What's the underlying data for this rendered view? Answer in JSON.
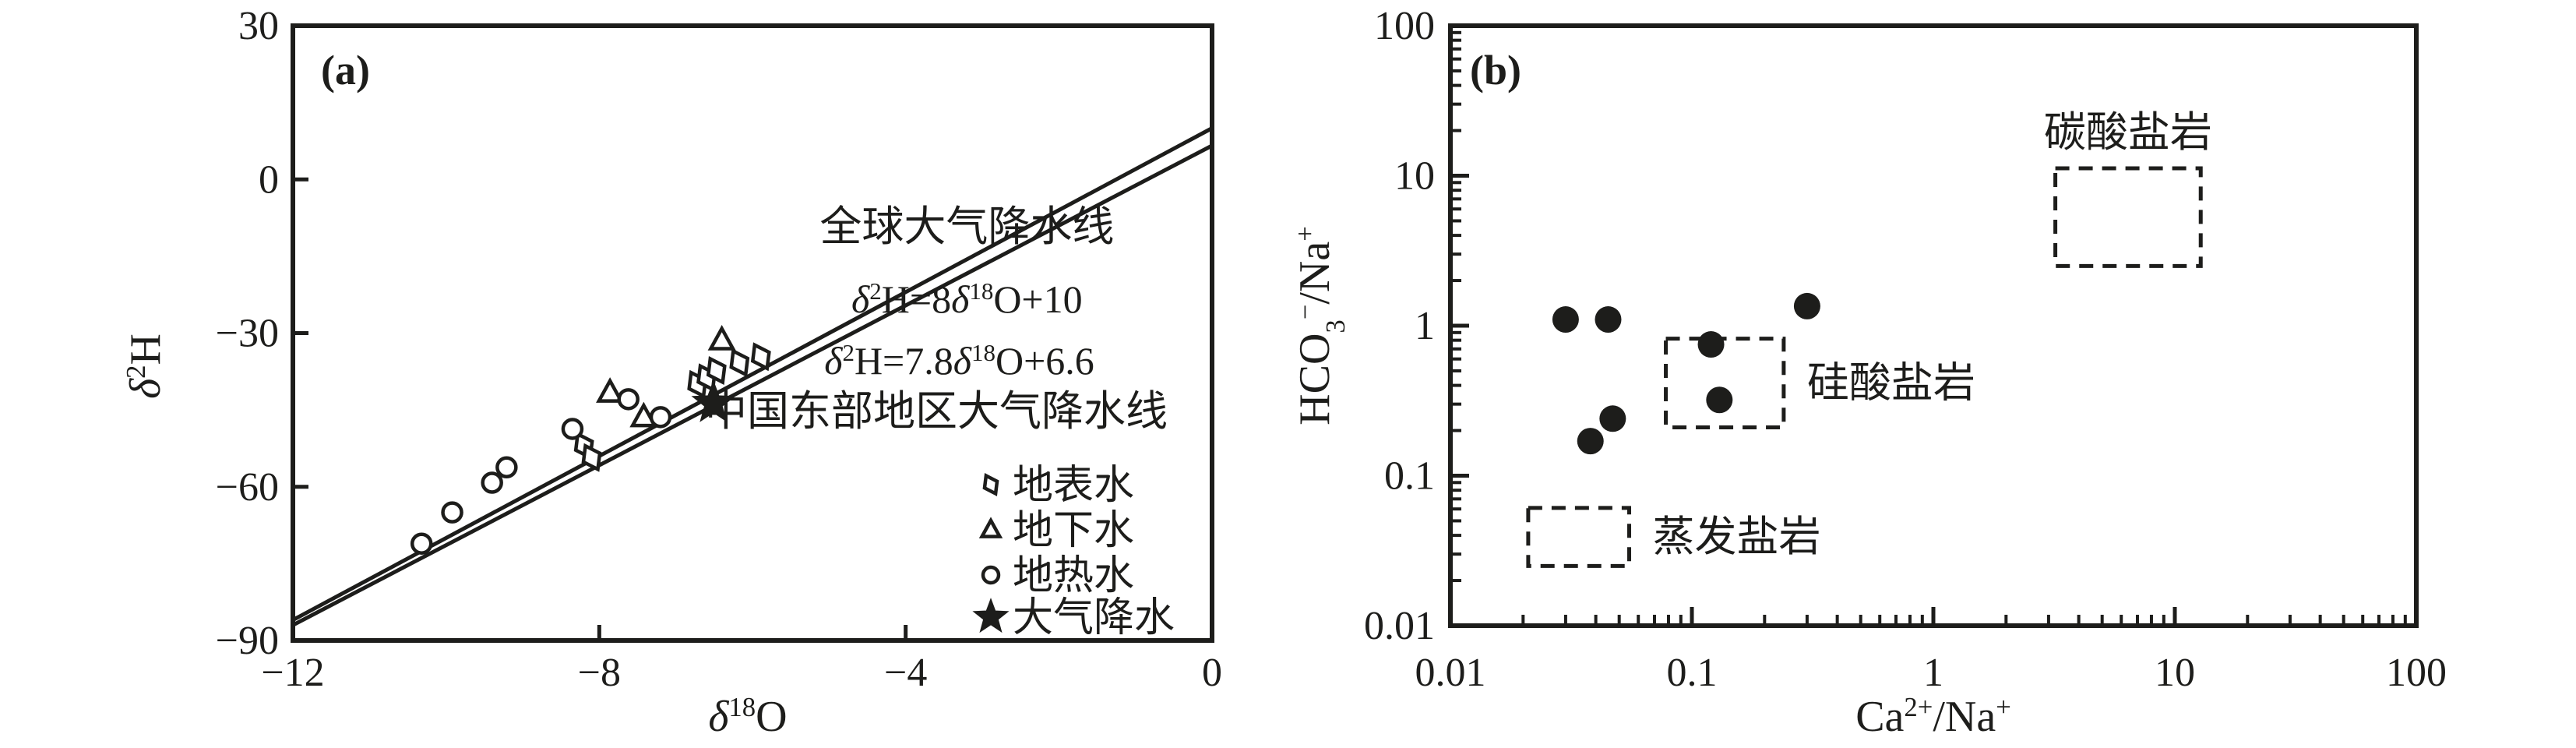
{
  "figure": {
    "ink_color": "#1d1d1b",
    "bg_color": "#ffffff"
  },
  "chart_data": [
    {
      "type": "scatter",
      "panel_label": "(a)",
      "xlabel_rich": [
        {
          "t": "δ",
          "i": true
        },
        {
          "t": "18",
          "sup": true
        },
        {
          "t": "O"
        }
      ],
      "ylabel_rich": [
        {
          "t": "δ",
          "i": true
        },
        {
          "t": "2",
          "sup": true
        },
        {
          "t": "H"
        }
      ],
      "xlim": [
        -12,
        0
      ],
      "ylim": [
        -90,
        30
      ],
      "x_ticks": [
        -12,
        -8,
        -4,
        0
      ],
      "y_ticks": [
        30,
        0,
        -30,
        -60,
        -90
      ],
      "x_tick_labels": [
        "−12",
        "−8",
        "−4",
        "0"
      ],
      "y_tick_labels": [
        "30",
        "0",
        "−30",
        "−60",
        "−90"
      ],
      "grid": false,
      "reference_lines": [
        {
          "name": "global-meteoric-water-line",
          "slope": 8,
          "intercept": 10,
          "title": "全球大气降水线",
          "equation_rich": [
            {
              "t": "δ",
              "i": true
            },
            {
              "t": "2",
              "sup": true
            },
            {
              "t": "H=8"
            },
            {
              "t": "δ",
              "i": true
            },
            {
              "t": "18",
              "sup": true
            },
            {
              "t": "O+10"
            }
          ],
          "title_anchor": {
            "x": -3.2,
            "y": -12.0
          },
          "equation_anchor": {
            "x": -3.2,
            "y": -26.0
          }
        },
        {
          "name": "east-china-meteoric-water-line",
          "slope": 7.8,
          "intercept": 6.6,
          "title": "中国东部地区大气降水线",
          "equation_rich": [
            {
              "t": "δ",
              "i": true
            },
            {
              "t": "2",
              "sup": true
            },
            {
              "t": "H=7.8"
            },
            {
              "t": "δ",
              "i": true
            },
            {
              "t": "18",
              "sup": true
            },
            {
              "t": "O+6.6"
            }
          ],
          "title_anchor": {
            "x": -3.6,
            "y": -48.0
          },
          "equation_anchor": {
            "x": -3.3,
            "y": -38.0
          }
        }
      ],
      "series": [
        {
          "name": "地表水",
          "marker": "diamond",
          "filled": false,
          "points": [
            [
              -8.2,
              -52.0
            ],
            [
              -8.1,
              -54.3
            ],
            [
              -6.72,
              -40.0
            ],
            [
              -6.6,
              -38.7
            ],
            [
              -6.47,
              -37.3
            ],
            [
              -6.17,
              -35.8
            ],
            [
              -5.89,
              -34.6
            ]
          ]
        },
        {
          "name": "地下水",
          "marker": "triangle",
          "filled": false,
          "points": [
            [
              -7.86,
              -41.6
            ],
            [
              -7.42,
              -46.4
            ],
            [
              -6.4,
              -31.4
            ]
          ]
        },
        {
          "name": "地热水",
          "marker": "circle",
          "filled": false,
          "points": [
            [
              -10.32,
              -71.1
            ],
            [
              -9.92,
              -65.0
            ],
            [
              -9.4,
              -59.2
            ],
            [
              -9.21,
              -56.2
            ],
            [
              -8.35,
              -48.7
            ],
            [
              -7.62,
              -42.9
            ],
            [
              -7.2,
              -46.4
            ]
          ]
        },
        {
          "name": "大气降水",
          "marker": "star",
          "filled": true,
          "points": [
            [
              -6.51,
              -43.7
            ]
          ]
        }
      ],
      "legend": {
        "position": "lower-right-inside",
        "items": [
          {
            "marker": "diamond",
            "label": "地表水"
          },
          {
            "marker": "triangle",
            "label": "地下水"
          },
          {
            "marker": "circle",
            "label": "地热水"
          },
          {
            "marker": "star",
            "label": "大气降水"
          }
        ]
      }
    },
    {
      "type": "scatter",
      "panel_label": "(b)",
      "xlabel_rich": [
        {
          "t": "Ca"
        },
        {
          "t": "2+",
          "sup": true
        },
        {
          "t": "/Na"
        },
        {
          "t": "+",
          "sup": true
        }
      ],
      "ylabel_rich": [
        {
          "t": "HCO"
        },
        {
          "t": "3",
          "sub": true
        },
        {
          "t": "−",
          "sup": true
        },
        {
          "t": "/Na"
        },
        {
          "t": "+",
          "sup": true
        }
      ],
      "x_scale": "log",
      "y_scale": "log",
      "xlim": [
        0.01,
        100
      ],
      "ylim": [
        0.01,
        100
      ],
      "x_ticks": [
        0.01,
        0.1,
        1,
        10,
        100
      ],
      "y_ticks": [
        100,
        10,
        1,
        0.1,
        0.01
      ],
      "x_tick_labels": [
        "0.01",
        "0.1",
        "1",
        "10",
        "100"
      ],
      "y_tick_labels": [
        "100",
        "10",
        "1",
        "0.1",
        "0.01"
      ],
      "log_minor_ticks": true,
      "grid": false,
      "series": [
        {
          "name": "water-samples",
          "marker": "circle",
          "filled": true,
          "points": [
            [
              0.03,
              1.1
            ],
            [
              0.045,
              1.1
            ],
            [
              0.3,
              1.35
            ],
            [
              0.12,
              0.75
            ],
            [
              0.13,
              0.32
            ],
            [
              0.047,
              0.24
            ],
            [
              0.038,
              0.17
            ]
          ]
        }
      ],
      "field_boxes": [
        {
          "name": "carbonate-rock-field",
          "label": "碳酸盐岩",
          "label_pos": "above",
          "x_range": [
            3.2,
            12.8
          ],
          "y_range": [
            2.5,
            11.2
          ]
        },
        {
          "name": "silicate-rock-field",
          "label": "硅酸盐岩",
          "label_pos": "right",
          "x_range": [
            0.078,
            0.24
          ],
          "y_range": [
            0.21,
            0.82
          ]
        },
        {
          "name": "evaporite-rock-field",
          "label": "蒸发盐岩",
          "label_pos": "right",
          "x_range": [
            0.021,
            0.055
          ],
          "y_range": [
            0.025,
            0.061
          ]
        }
      ]
    }
  ]
}
